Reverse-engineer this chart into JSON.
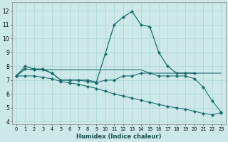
{
  "xlabel": "Humidex (Indice chaleur)",
  "background_color": "#cce8e8",
  "grid_color": "#aad4d4",
  "line_color": "#1a6b6b",
  "xlim": [
    -0.5,
    23.5
  ],
  "ylim": [
    3.8,
    12.6
  ],
  "xticks": [
    0,
    1,
    2,
    3,
    4,
    5,
    6,
    7,
    8,
    9,
    10,
    11,
    12,
    13,
    14,
    15,
    16,
    17,
    18,
    19,
    20,
    21,
    22,
    23
  ],
  "yticks": [
    4,
    5,
    6,
    7,
    8,
    9,
    10,
    11,
    12
  ],
  "series": {
    "peaked_x": [
      0,
      1,
      2,
      3,
      4,
      5,
      6,
      7,
      8,
      9,
      10,
      11,
      12,
      13,
      14,
      15,
      16,
      17,
      18,
      19,
      20
    ],
    "peaked_y": [
      7.3,
      8.0,
      7.8,
      7.8,
      7.5,
      7.0,
      7.0,
      7.0,
      7.0,
      6.85,
      8.9,
      11.0,
      11.55,
      11.95,
      11.0,
      10.85,
      9.0,
      8.0,
      7.5,
      7.5,
      7.5
    ],
    "flat_x": [
      0,
      1,
      2,
      3,
      4,
      5,
      6,
      7,
      8,
      9,
      10,
      11,
      12,
      13,
      14,
      15,
      16,
      17,
      18,
      19,
      20,
      21,
      22,
      23
    ],
    "flat_y": [
      7.3,
      7.8,
      7.75,
      7.75,
      7.75,
      7.75,
      7.75,
      7.75,
      7.75,
      7.75,
      7.75,
      7.75,
      7.75,
      7.75,
      7.75,
      7.5,
      7.5,
      7.5,
      7.5,
      7.5,
      7.5,
      7.5,
      7.5,
      7.5
    ],
    "med_x": [
      0,
      1,
      2,
      3,
      4,
      5,
      6,
      7,
      8,
      9,
      10,
      11,
      12,
      13,
      14,
      15,
      16,
      17,
      18,
      19,
      20,
      21,
      22,
      23
    ],
    "med_y": [
      7.3,
      7.8,
      7.75,
      7.75,
      7.5,
      7.0,
      7.0,
      7.0,
      6.9,
      6.8,
      7.0,
      7.0,
      7.3,
      7.3,
      7.5,
      7.5,
      7.3,
      7.3,
      7.3,
      7.3,
      7.1,
      6.5,
      5.5,
      4.7
    ],
    "decline_x": [
      0,
      1,
      2,
      3,
      4,
      5,
      6,
      7,
      8,
      9,
      10,
      11,
      12,
      13,
      14,
      15,
      16,
      17,
      18,
      19,
      20,
      21,
      22,
      23
    ],
    "decline_y": [
      7.3,
      7.3,
      7.3,
      7.2,
      7.1,
      6.9,
      6.8,
      6.7,
      6.55,
      6.4,
      6.2,
      6.0,
      5.85,
      5.7,
      5.55,
      5.4,
      5.25,
      5.1,
      5.0,
      4.9,
      4.75,
      4.6,
      4.5,
      4.65
    ]
  }
}
